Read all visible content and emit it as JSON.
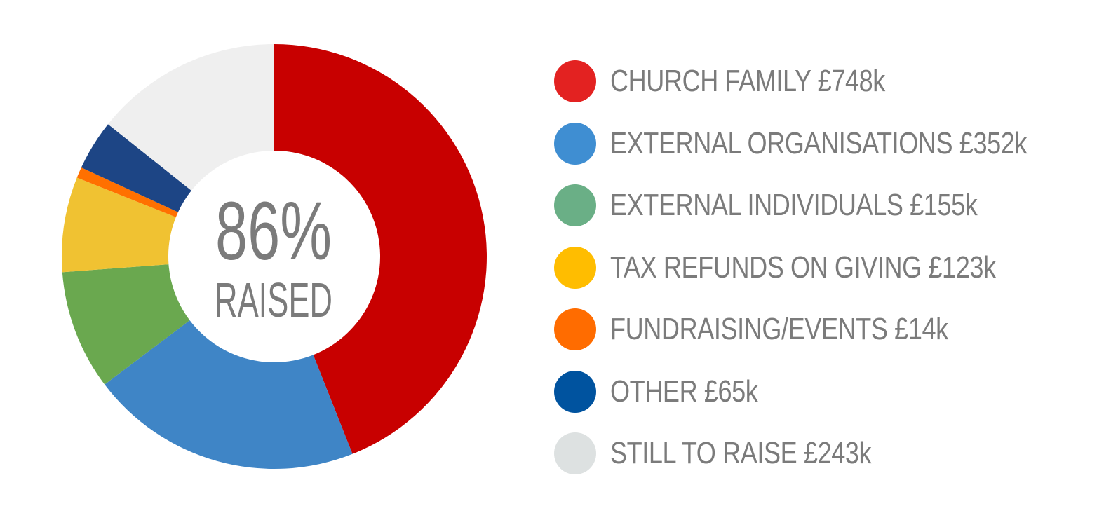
{
  "chart_data": {
    "type": "pie",
    "currency": "£",
    "unit": "k",
    "center_label": {
      "value": "86%",
      "text": "RAISED"
    },
    "slices": [
      {
        "key": "church-family",
        "label": "CHURCH FAMILY £748k",
        "value": 748,
        "color": "#c80000",
        "legend_color": "#e32221"
      },
      {
        "key": "external-organisations",
        "label": "EXTERNAL ORGANISATIONS £352k",
        "value": 352,
        "color": "#3f85c6",
        "legend_color": "#3f8ed2"
      },
      {
        "key": "external-individuals",
        "label": "EXTERNAL INDIVIDUALS £155k",
        "value": 155,
        "color": "#6aa84f",
        "legend_color": "#6aaf86"
      },
      {
        "key": "tax-refunds-on-giving",
        "label": "TAX REFUNDS ON GIVING £123k",
        "value": 123,
        "color": "#f0c232",
        "legend_color": "#ffbd00"
      },
      {
        "key": "fundraising-events",
        "label": "FUNDRAISING/EVENTS £14k",
        "value": 14,
        "color": "#ff7000",
        "legend_color": "#ff6c00"
      },
      {
        "key": "other",
        "label": "OTHER £65k",
        "value": 65,
        "color": "#1d4585",
        "legend_color": "#00539f"
      },
      {
        "key": "still-to-raise",
        "label": "STILL TO RAISE £243k",
        "value": 243,
        "color": "#efefef",
        "legend_color": "#dde1e1"
      }
    ]
  }
}
